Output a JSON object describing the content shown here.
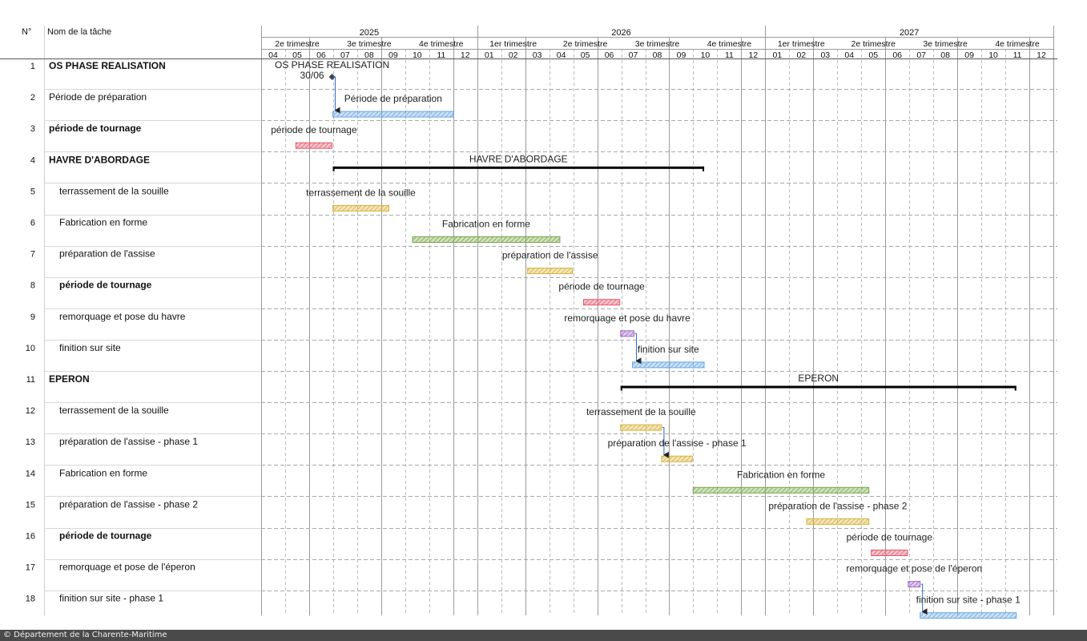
{
  "columns": {
    "id": "N°",
    "name": "Nom de la tâche"
  },
  "timeline": {
    "years": [
      "2025",
      "2026",
      "2027"
    ],
    "quarters": [
      "2e trimestre",
      "3e trimestre",
      "4e trimestre",
      "1er trimestre",
      "2e trimestre",
      "3e trimestre",
      "4e trimestre",
      "1er trimestre",
      "2e trimestre",
      "3e trimestre",
      "4e trimestre"
    ],
    "months": [
      "04",
      "05",
      "06",
      "07",
      "08",
      "09",
      "10",
      "11",
      "12",
      "01",
      "02",
      "03",
      "04",
      "05",
      "06",
      "07",
      "08",
      "09",
      "10",
      "11",
      "12",
      "01",
      "02",
      "03",
      "04",
      "05",
      "06",
      "07",
      "08",
      "09",
      "10",
      "11",
      "12"
    ]
  },
  "chart_data": {
    "type": "gantt",
    "x_unit": "month",
    "xlim": [
      "2025-04-01",
      "2027-12-31"
    ],
    "tasks": [
      {
        "id": "1",
        "name": "OS PHASE REALISATION",
        "bold": true,
        "indent": 0,
        "type": "milestone",
        "date": "2025-06-30",
        "bar_label": "OS PHASE REALISATION",
        "date_label": "30/06"
      },
      {
        "id": "2",
        "name": "Période de préparation",
        "bold": false,
        "indent": 0,
        "type": "task",
        "start": "2025-07-01",
        "end": "2025-12-01",
        "color": "#6aa7e3",
        "bar_label": "Période de préparation"
      },
      {
        "id": "3",
        "name": "période de tournage",
        "bold": true,
        "indent": 0,
        "type": "task",
        "start": "2025-05-15",
        "end": "2025-06-30",
        "color": "#e8576b",
        "bar_label": "période de tournage"
      },
      {
        "id": "4",
        "name": "HAVRE D'ABORDAGE",
        "bold": true,
        "indent": 0,
        "type": "summary",
        "start": "2025-07-01",
        "end": "2026-10-15",
        "bar_label": "HAVRE D'ABORDAGE"
      },
      {
        "id": "5",
        "name": "terrassement de la souille",
        "bold": false,
        "indent": 1,
        "type": "task",
        "start": "2025-07-01",
        "end": "2025-09-10",
        "color": "#d9b23a",
        "bar_label": "terrassement de la souille"
      },
      {
        "id": "6",
        "name": "Fabrication en forme",
        "bold": false,
        "indent": 1,
        "type": "task",
        "start": "2025-10-10",
        "end": "2026-04-15",
        "color": "#79a84a",
        "bar_label": "Fabrication en forme"
      },
      {
        "id": "7",
        "name": "préparation de l'assise",
        "bold": false,
        "indent": 1,
        "type": "task",
        "start": "2026-03-05",
        "end": "2026-05-01",
        "color": "#d9b23a",
        "bar_label": "préparation de l'assise"
      },
      {
        "id": "8",
        "name": "période de tournage",
        "bold": true,
        "indent": 1,
        "type": "task",
        "start": "2026-05-15",
        "end": "2026-06-30",
        "color": "#e8576b",
        "bar_label": "période de tournage"
      },
      {
        "id": "9",
        "name": "remorquage et pose du havre",
        "bold": false,
        "indent": 1,
        "type": "task",
        "start": "2026-07-01",
        "end": "2026-07-18",
        "color": "#a066c8",
        "bar_label": "remorquage et pose du havre"
      },
      {
        "id": "10",
        "name": "finition sur site",
        "bold": false,
        "indent": 1,
        "type": "task",
        "start": "2026-07-16",
        "end": "2026-10-15",
        "color": "#6aa7e3",
        "bar_label": "finition sur site"
      },
      {
        "id": "11",
        "name": "EPERON",
        "bold": true,
        "indent": 0,
        "type": "summary",
        "start": "2026-07-01",
        "end": "2027-11-15",
        "bar_label": "EPERON"
      },
      {
        "id": "12",
        "name": "terrassement de la souille",
        "bold": false,
        "indent": 1,
        "type": "task",
        "start": "2026-07-01",
        "end": "2026-08-22",
        "color": "#d9b23a",
        "bar_label": "terrassement de la souille"
      },
      {
        "id": "13",
        "name": "préparation de l'assise - phase 1",
        "bold": false,
        "indent": 1,
        "type": "task",
        "start": "2026-08-22",
        "end": "2026-09-30",
        "color": "#d9b23a",
        "bar_label": "préparation de l'assise - phase 1"
      },
      {
        "id": "14",
        "name": "Fabrication en forme",
        "bold": false,
        "indent": 1,
        "type": "task",
        "start": "2026-10-01",
        "end": "2027-05-12",
        "color": "#79a84a",
        "bar_label": "Fabrication en forme"
      },
      {
        "id": "15",
        "name": "préparation de l'assise - phase 2",
        "bold": false,
        "indent": 1,
        "type": "task",
        "start": "2027-02-22",
        "end": "2027-05-12",
        "color": "#d9b23a",
        "bar_label": "préparation de l'assise - phase 2"
      },
      {
        "id": "16",
        "name": "période de tournage",
        "bold": true,
        "indent": 1,
        "type": "task",
        "start": "2027-05-15",
        "end": "2027-06-30",
        "color": "#e8576b",
        "bar_label": "période de tournage"
      },
      {
        "id": "17",
        "name": "remorquage et pose de l'éperon",
        "bold": false,
        "indent": 1,
        "type": "task",
        "start": "2027-07-01",
        "end": "2027-07-16",
        "color": "#a066c8",
        "bar_label": "remorquage et pose de l'éperon"
      },
      {
        "id": "18",
        "name": "finition sur site - phase 1",
        "bold": false,
        "indent": 1,
        "type": "task",
        "start": "2027-07-16",
        "end": "2027-11-15",
        "color": "#6aa7e3",
        "bar_label": "finition sur site - phase 1"
      }
    ],
    "dependencies": [
      {
        "from": "1",
        "to": "2"
      },
      {
        "from": "9",
        "to": "10"
      },
      {
        "from": "12",
        "to": "13"
      },
      {
        "from": "17",
        "to": "18"
      }
    ]
  },
  "footer": "© Département de la Charente-Maritime"
}
